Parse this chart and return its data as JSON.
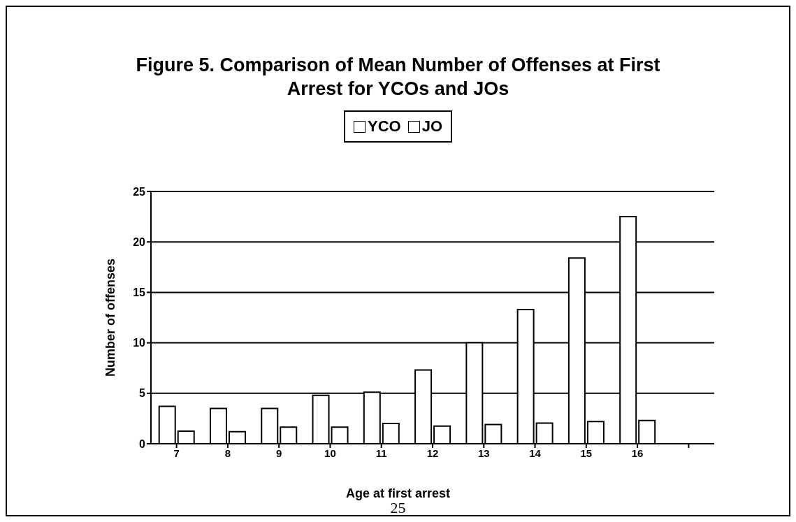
{
  "chart_data": {
    "type": "bar",
    "title": "Figure 5.  Comparison of Mean Number of Offenses at First Arrest for YCOs and JOs",
    "xlabel": "Age at first arrest",
    "ylabel": "Number of offenses",
    "categories": [
      "7",
      "8",
      "9",
      "10",
      "11",
      "12",
      "13",
      "14",
      "15",
      "16",
      null
    ],
    "series": [
      {
        "name": "YCO",
        "color": "#ffffff",
        "values": [
          3.7,
          3.5,
          3.5,
          4.8,
          5.1,
          7.3,
          10.0,
          13.3,
          18.4,
          22.5,
          null
        ]
      },
      {
        "name": "JO",
        "color": "#ffffff",
        "values": [
          1.24,
          1.2,
          1.65,
          1.65,
          2.0,
          1.75,
          1.9,
          2.05,
          2.2,
          2.3,
          null
        ]
      }
    ],
    "ylim": [
      0,
      25
    ],
    "yticks": [
      0,
      5,
      10,
      15,
      20,
      25
    ],
    "grid": "y",
    "legend": "top",
    "annotations": [
      "25"
    ]
  }
}
